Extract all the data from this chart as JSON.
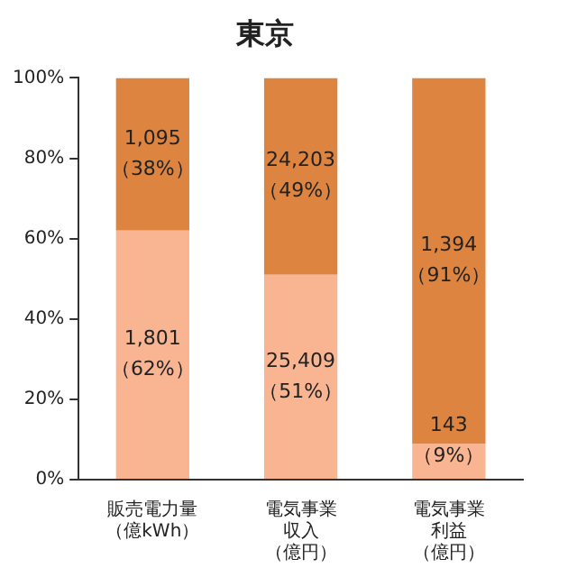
{
  "chart_data": {
    "type": "bar",
    "title": "東京",
    "stacked": true,
    "categories": [
      "販売電力量（億kWh）",
      "電気事業収入（億円）",
      "電気事業利益（億円）"
    ],
    "series": [
      {
        "color": "#f9b592",
        "values": [
          62,
          51,
          9
        ],
        "value_labels": [
          "1,801\n（62%）",
          "25,409\n（51%）",
          "143\n（9%）"
        ]
      },
      {
        "color": "#dc8440",
        "values": [
          38,
          49,
          91
        ],
        "value_labels": [
          "1,095\n（38%）",
          "24,203\n（49%）",
          "1,394\n（91%）"
        ]
      }
    ],
    "ylim": [
      0,
      100
    ],
    "yticks": [
      {
        "value": 0,
        "label": "0%"
      },
      {
        "value": 20,
        "label": "20%"
      },
      {
        "value": 40,
        "label": "40%"
      },
      {
        "value": 60,
        "label": "60%"
      },
      {
        "value": 80,
        "label": "80%"
      },
      {
        "value": 100,
        "label": "100%"
      }
    ],
    "grid": false,
    "legend": false
  }
}
